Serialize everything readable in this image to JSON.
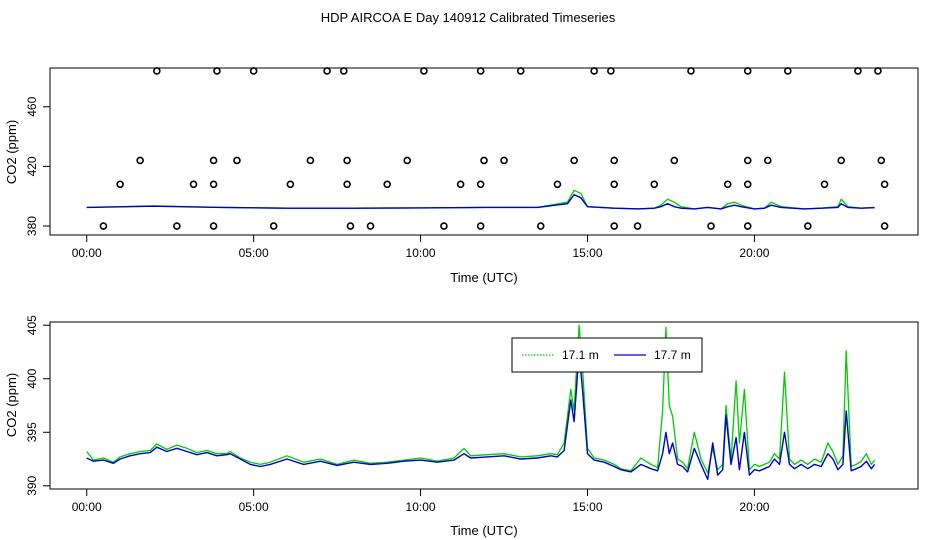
{
  "title": "HDP AIRCOA E  Day 140912  Calibrated Timeseries",
  "chart_data": [
    {
      "type": "scatter+line",
      "xlabel": "Time (UTC)",
      "ylabel": "CO2 (ppm)",
      "xlim": [
        -1.1,
        24.9
      ],
      "ylim": [
        374,
        486
      ],
      "xticks": [
        {
          "v": 0,
          "label": "00:00"
        },
        {
          "v": 5,
          "label": "05:00"
        },
        {
          "v": 10,
          "label": "10:00"
        },
        {
          "v": 15,
          "label": "15:00"
        },
        {
          "v": 20,
          "label": "20:00"
        }
      ],
      "yticks": [
        {
          "v": 380,
          "label": "380"
        },
        {
          "v": 420,
          "label": "420"
        },
        {
          "v": 460,
          "label": "460"
        }
      ],
      "calibration_points": [
        [
          0.5,
          380
        ],
        [
          2.7,
          380
        ],
        [
          3.8,
          380
        ],
        [
          5.6,
          380
        ],
        [
          7.9,
          380
        ],
        [
          8.5,
          380
        ],
        [
          10.7,
          380
        ],
        [
          11.8,
          380
        ],
        [
          13.6,
          380
        ],
        [
          15.8,
          380
        ],
        [
          16.5,
          380
        ],
        [
          18.7,
          380
        ],
        [
          19.8,
          380
        ],
        [
          21.6,
          380
        ],
        [
          23.9,
          380
        ],
        [
          1.0,
          408
        ],
        [
          3.2,
          408
        ],
        [
          3.8,
          408
        ],
        [
          6.1,
          408
        ],
        [
          7.8,
          408
        ],
        [
          9.0,
          408
        ],
        [
          11.2,
          408
        ],
        [
          11.8,
          408
        ],
        [
          14.1,
          408
        ],
        [
          15.8,
          408
        ],
        [
          17.0,
          408
        ],
        [
          19.2,
          408
        ],
        [
          19.8,
          408
        ],
        [
          22.1,
          408
        ],
        [
          23.9,
          408
        ],
        [
          1.6,
          424
        ],
        [
          3.8,
          424
        ],
        [
          4.5,
          424
        ],
        [
          6.7,
          424
        ],
        [
          7.8,
          424
        ],
        [
          9.6,
          424
        ],
        [
          11.9,
          424
        ],
        [
          12.5,
          424
        ],
        [
          14.6,
          424
        ],
        [
          15.8,
          424
        ],
        [
          17.6,
          424
        ],
        [
          19.8,
          424
        ],
        [
          20.4,
          424
        ],
        [
          22.6,
          424
        ],
        [
          23.8,
          424
        ],
        [
          2.1,
          484
        ],
        [
          3.9,
          484
        ],
        [
          5.0,
          484
        ],
        [
          7.2,
          484
        ],
        [
          7.7,
          484
        ],
        [
          10.1,
          484
        ],
        [
          11.8,
          484
        ],
        [
          13.0,
          484
        ],
        [
          15.2,
          484
        ],
        [
          15.7,
          484
        ],
        [
          18.1,
          484
        ],
        [
          19.8,
          484
        ],
        [
          21.0,
          484
        ],
        [
          23.1,
          484
        ],
        [
          23.7,
          484
        ]
      ],
      "series": [
        {
          "color": "#00cc00",
          "x": [
            0,
            2,
            4,
            6,
            8,
            10,
            12,
            13.5,
            14.4,
            14.6,
            14.8,
            15.0,
            15.8,
            16.5,
            17.0,
            17.2,
            17.4,
            17.6,
            17.8,
            18.2,
            18.6,
            19.0,
            19.2,
            19.4,
            19.6,
            20.0,
            20.3,
            20.5,
            20.8,
            21.5,
            22.0,
            22.5,
            22.6,
            22.8,
            23.2,
            23.6
          ],
          "y": [
            392.5,
            393.5,
            392.5,
            392,
            392,
            392.2,
            392.5,
            392.5,
            396,
            404,
            402,
            393,
            392,
            391.5,
            392,
            394,
            398,
            396,
            393,
            391.5,
            392.5,
            391.5,
            395,
            396,
            394,
            391.5,
            392,
            396,
            393,
            391.5,
            392,
            393,
            398,
            393,
            392,
            392.5
          ]
        },
        {
          "color": "#0000cc",
          "x": [
            0,
            2,
            4,
            6,
            8,
            10,
            12,
            13.5,
            14.4,
            14.6,
            14.8,
            15.0,
            15.8,
            16.5,
            17.0,
            17.2,
            17.4,
            17.6,
            17.8,
            18.2,
            18.6,
            19.0,
            19.2,
            19.4,
            19.6,
            20.0,
            20.3,
            20.5,
            20.8,
            21.5,
            22.0,
            22.5,
            22.6,
            22.8,
            23.2,
            23.6
          ],
          "y": [
            392.5,
            393.3,
            392.5,
            392,
            392,
            392.2,
            392.5,
            392.5,
            395,
            401,
            399,
            393,
            392,
            391.5,
            392,
            393,
            395,
            393,
            392,
            391.5,
            392.5,
            391.5,
            393,
            394,
            393,
            391.5,
            392,
            394,
            392.5,
            391.5,
            392,
            392.5,
            395,
            392.5,
            392,
            392.3
          ]
        }
      ]
    },
    {
      "type": "line",
      "xlabel": "Time (UTC)",
      "ylabel": "CO2 (ppm)",
      "xlim": [
        -1.1,
        24.9
      ],
      "ylim": [
        389.7,
        405.3
      ],
      "xticks": [
        {
          "v": 0,
          "label": "00:00"
        },
        {
          "v": 5,
          "label": "05:00"
        },
        {
          "v": 10,
          "label": "10:00"
        },
        {
          "v": 15,
          "label": "15:00"
        },
        {
          "v": 20,
          "label": "20:00"
        }
      ],
      "yticks": [
        {
          "v": 390,
          "label": "390"
        },
        {
          "v": 395,
          "label": "395"
        },
        {
          "v": 400,
          "label": "400"
        },
        {
          "v": 405,
          "label": "405"
        }
      ],
      "legend": [
        {
          "name": "17.1 m",
          "color": "#00cc00",
          "style": "dotted"
        },
        {
          "name": "17.7 m",
          "color": "#0000cc",
          "style": "solid"
        }
      ],
      "series": [
        {
          "name": "17.1 m",
          "color": "#00cc00",
          "x": [
            0,
            0.2,
            0.5,
            0.8,
            1.0,
            1.3,
            1.6,
            1.9,
            2.1,
            2.4,
            2.7,
            3.0,
            3.3,
            3.6,
            3.9,
            4.2,
            4.3,
            4.6,
            4.9,
            5.2,
            5.5,
            6.0,
            6.5,
            7.0,
            7.5,
            8.0,
            8.5,
            9.0,
            9.5,
            10.0,
            10.5,
            11.0,
            11.3,
            11.5,
            12.0,
            12.5,
            13.0,
            13.5,
            13.9,
            14.1,
            14.3,
            14.5,
            14.6,
            14.75,
            14.85,
            15.0,
            15.2,
            15.5,
            15.8,
            16.0,
            16.3,
            16.6,
            16.9,
            17.1,
            17.25,
            17.35,
            17.45,
            17.55,
            17.7,
            17.85,
            18.0,
            18.2,
            18.4,
            18.6,
            18.75,
            18.9,
            19.05,
            19.15,
            19.3,
            19.45,
            19.55,
            19.7,
            19.85,
            20.0,
            20.15,
            20.3,
            20.45,
            20.6,
            20.75,
            20.9,
            21.05,
            21.2,
            21.4,
            21.6,
            21.8,
            22.0,
            22.2,
            22.35,
            22.5,
            22.65,
            22.75,
            22.9,
            23.05,
            23.2,
            23.35,
            23.5,
            23.6
          ],
          "y": [
            393.2,
            392.4,
            392.6,
            392.2,
            392.7,
            393.0,
            393.2,
            393.3,
            393.9,
            393.4,
            393.8,
            393.5,
            393.1,
            393.3,
            393.0,
            393.0,
            393.2,
            392.6,
            392.2,
            392.0,
            392.2,
            392.8,
            392.2,
            392.5,
            392.0,
            392.4,
            392.1,
            392.2,
            392.4,
            392.6,
            392.3,
            392.6,
            393.5,
            392.8,
            392.9,
            393.0,
            392.7,
            392.8,
            393.0,
            392.9,
            394.0,
            399.0,
            397.0,
            405.0,
            401.0,
            393.5,
            392.6,
            392.4,
            392.0,
            391.6,
            391.4,
            392.6,
            392.0,
            391.7,
            397.0,
            404.8,
            397.5,
            396.5,
            392.5,
            392.2,
            391.6,
            395.0,
            392.5,
            391.2,
            393.5,
            391.5,
            392.0,
            397.5,
            392.4,
            399.8,
            394.0,
            399.0,
            391.5,
            392.0,
            391.8,
            392.0,
            392.2,
            393.0,
            392.5,
            400.6,
            392.5,
            392.0,
            392.4,
            392.0,
            392.5,
            392.2,
            394.0,
            393.2,
            392.0,
            392.8,
            402.6,
            391.8,
            392.0,
            392.3,
            393.0,
            392.0,
            392.4
          ]
        },
        {
          "name": "17.7 m",
          "color": "#0000cc",
          "x": [
            0,
            0.2,
            0.5,
            0.8,
            1.0,
            1.3,
            1.6,
            1.9,
            2.1,
            2.4,
            2.7,
            3.0,
            3.3,
            3.6,
            3.9,
            4.2,
            4.3,
            4.6,
            4.9,
            5.2,
            5.5,
            6.0,
            6.5,
            7.0,
            7.5,
            8.0,
            8.5,
            9.0,
            9.5,
            10.0,
            10.5,
            11.0,
            11.3,
            11.5,
            12.0,
            12.5,
            13.0,
            13.5,
            13.9,
            14.1,
            14.3,
            14.5,
            14.6,
            14.75,
            14.85,
            15.0,
            15.2,
            15.5,
            15.8,
            16.0,
            16.3,
            16.6,
            16.9,
            17.1,
            17.25,
            17.35,
            17.45,
            17.55,
            17.7,
            17.85,
            18.0,
            18.2,
            18.4,
            18.6,
            18.75,
            18.9,
            19.05,
            19.15,
            19.3,
            19.45,
            19.55,
            19.7,
            19.85,
            20.0,
            20.15,
            20.3,
            20.45,
            20.6,
            20.75,
            20.9,
            21.05,
            21.2,
            21.4,
            21.6,
            21.8,
            22.0,
            22.2,
            22.35,
            22.5,
            22.65,
            22.75,
            22.9,
            23.05,
            23.2,
            23.35,
            23.5,
            23.6
          ],
          "y": [
            392.6,
            392.3,
            392.4,
            392.1,
            392.5,
            392.8,
            393.0,
            393.1,
            393.6,
            393.2,
            393.5,
            393.2,
            392.9,
            393.1,
            392.8,
            392.9,
            393.0,
            392.5,
            392.0,
            391.8,
            392.0,
            392.5,
            392.0,
            392.3,
            391.9,
            392.2,
            392.0,
            392.1,
            392.3,
            392.4,
            392.2,
            392.4,
            393.0,
            392.6,
            392.7,
            392.8,
            392.5,
            392.6,
            392.8,
            392.7,
            393.3,
            398.0,
            396.0,
            402.5,
            399.0,
            393.0,
            392.4,
            392.2,
            391.8,
            391.5,
            391.3,
            392.0,
            391.6,
            391.4,
            393.0,
            395.0,
            393.0,
            394.0,
            392.0,
            391.8,
            391.3,
            393.5,
            392.0,
            390.6,
            394.0,
            391.0,
            391.5,
            396.6,
            392.0,
            394.5,
            391.5,
            395.0,
            391.0,
            391.5,
            391.4,
            391.6,
            391.8,
            392.5,
            392.0,
            395.0,
            392.0,
            391.6,
            392.0,
            391.6,
            392.0,
            391.8,
            393.0,
            392.5,
            391.5,
            392.0,
            397.0,
            391.4,
            391.6,
            391.8,
            392.3,
            391.6,
            392.0
          ]
        }
      ]
    }
  ]
}
